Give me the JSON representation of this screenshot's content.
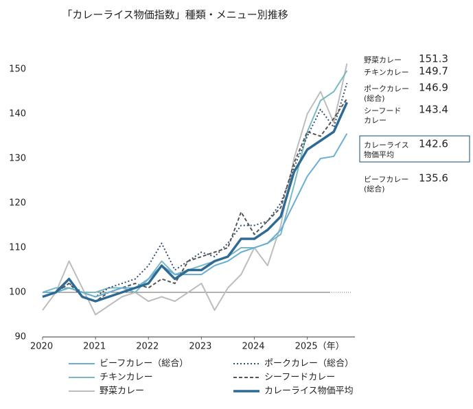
{
  "chart_data": {
    "type": "line",
    "title": "「カレーライス物価指数」種類・メニュー別推移",
    "x": [
      2020,
      2020.25,
      2020.5,
      2020.75,
      2021,
      2021.25,
      2021.5,
      2021.75,
      2022,
      2022.25,
      2022.5,
      2022.75,
      2023,
      2023.25,
      2023.5,
      2023.75,
      2024,
      2024.25,
      2024.5,
      2024.75,
      2025,
      2025.25,
      2025.5,
      2025.75
    ],
    "xlim": [
      2020,
      2025.9
    ],
    "xticks": [
      2020,
      2021,
      2022,
      2023,
      2024,
      {
        "value": 2025,
        "label": "2025（年）"
      }
    ],
    "ylim": [
      90,
      152
    ],
    "yticks": [
      90,
      100,
      110,
      120,
      130,
      140,
      150
    ],
    "hline": 100,
    "series": [
      {
        "name": "ビーフカレー（総合）",
        "color": "#6aafd3",
        "style": "solid",
        "end_label": [
          "ビーフカレー",
          "(総合)"
        ],
        "values": [
          100,
          100,
          101,
          100,
          99,
          100,
          101,
          101,
          103,
          106,
          104,
          104,
          104,
          106,
          107,
          109,
          110,
          111,
          114,
          120,
          126,
          130,
          130.5,
          135.6
        ]
      },
      {
        "name": "ポークカレー（総合）",
        "color": "#2f4f6f",
        "style": "dotted",
        "end_label": [
          "ポークカレー",
          "(総合)"
        ],
        "values": [
          99,
          100,
          102,
          100,
          99,
          101,
          102,
          103,
          106,
          111,
          105,
          107,
          109,
          108,
          111,
          115,
          115,
          116,
          120,
          128,
          135,
          141,
          137,
          146.9
        ]
      },
      {
        "name": "チキンカレー",
        "color": "#7ab9c3",
        "style": "solid",
        "end_label": [
          "チキンカレー"
        ],
        "values": [
          100,
          101,
          101,
          100,
          100,
          101,
          101,
          100,
          103,
          107,
          104,
          105,
          106,
          107,
          108,
          110,
          110,
          111,
          113,
          124,
          136,
          143,
          145,
          149.7
        ]
      },
      {
        "name": "シーフードカレー",
        "color": "#555555",
        "style": "dashed",
        "end_label": [
          "シーフード",
          "カレー"
        ],
        "values": [
          99,
          100,
          102,
          99,
          98,
          100,
          101,
          102,
          101,
          103,
          102,
          107,
          108,
          109,
          110,
          118,
          113,
          116,
          119,
          129,
          136,
          135,
          139,
          143.4
        ]
      },
      {
        "name": "野菜カレー",
        "color": "#bdbdbd",
        "style": "solid",
        "end_label": [
          "野菜カレー"
        ],
        "values": [
          96,
          100,
          107,
          101,
          95,
          97,
          99,
          100,
          98,
          99,
          98,
          100,
          102,
          96,
          101,
          104,
          110,
          106,
          115,
          130,
          140,
          145,
          138,
          151.3
        ]
      },
      {
        "name": "カレーライス物価平均",
        "color": "#2e6a93",
        "style": "thick",
        "end_label": [
          "カレーライス",
          "物価平均"
        ],
        "values": [
          99,
          100,
          103,
          99,
          98,
          99,
          100,
          101,
          102,
          106,
          103,
          105,
          105,
          107,
          108,
          112,
          112,
          114,
          117,
          127,
          132,
          134,
          136,
          142.6
        ]
      }
    ]
  }
}
